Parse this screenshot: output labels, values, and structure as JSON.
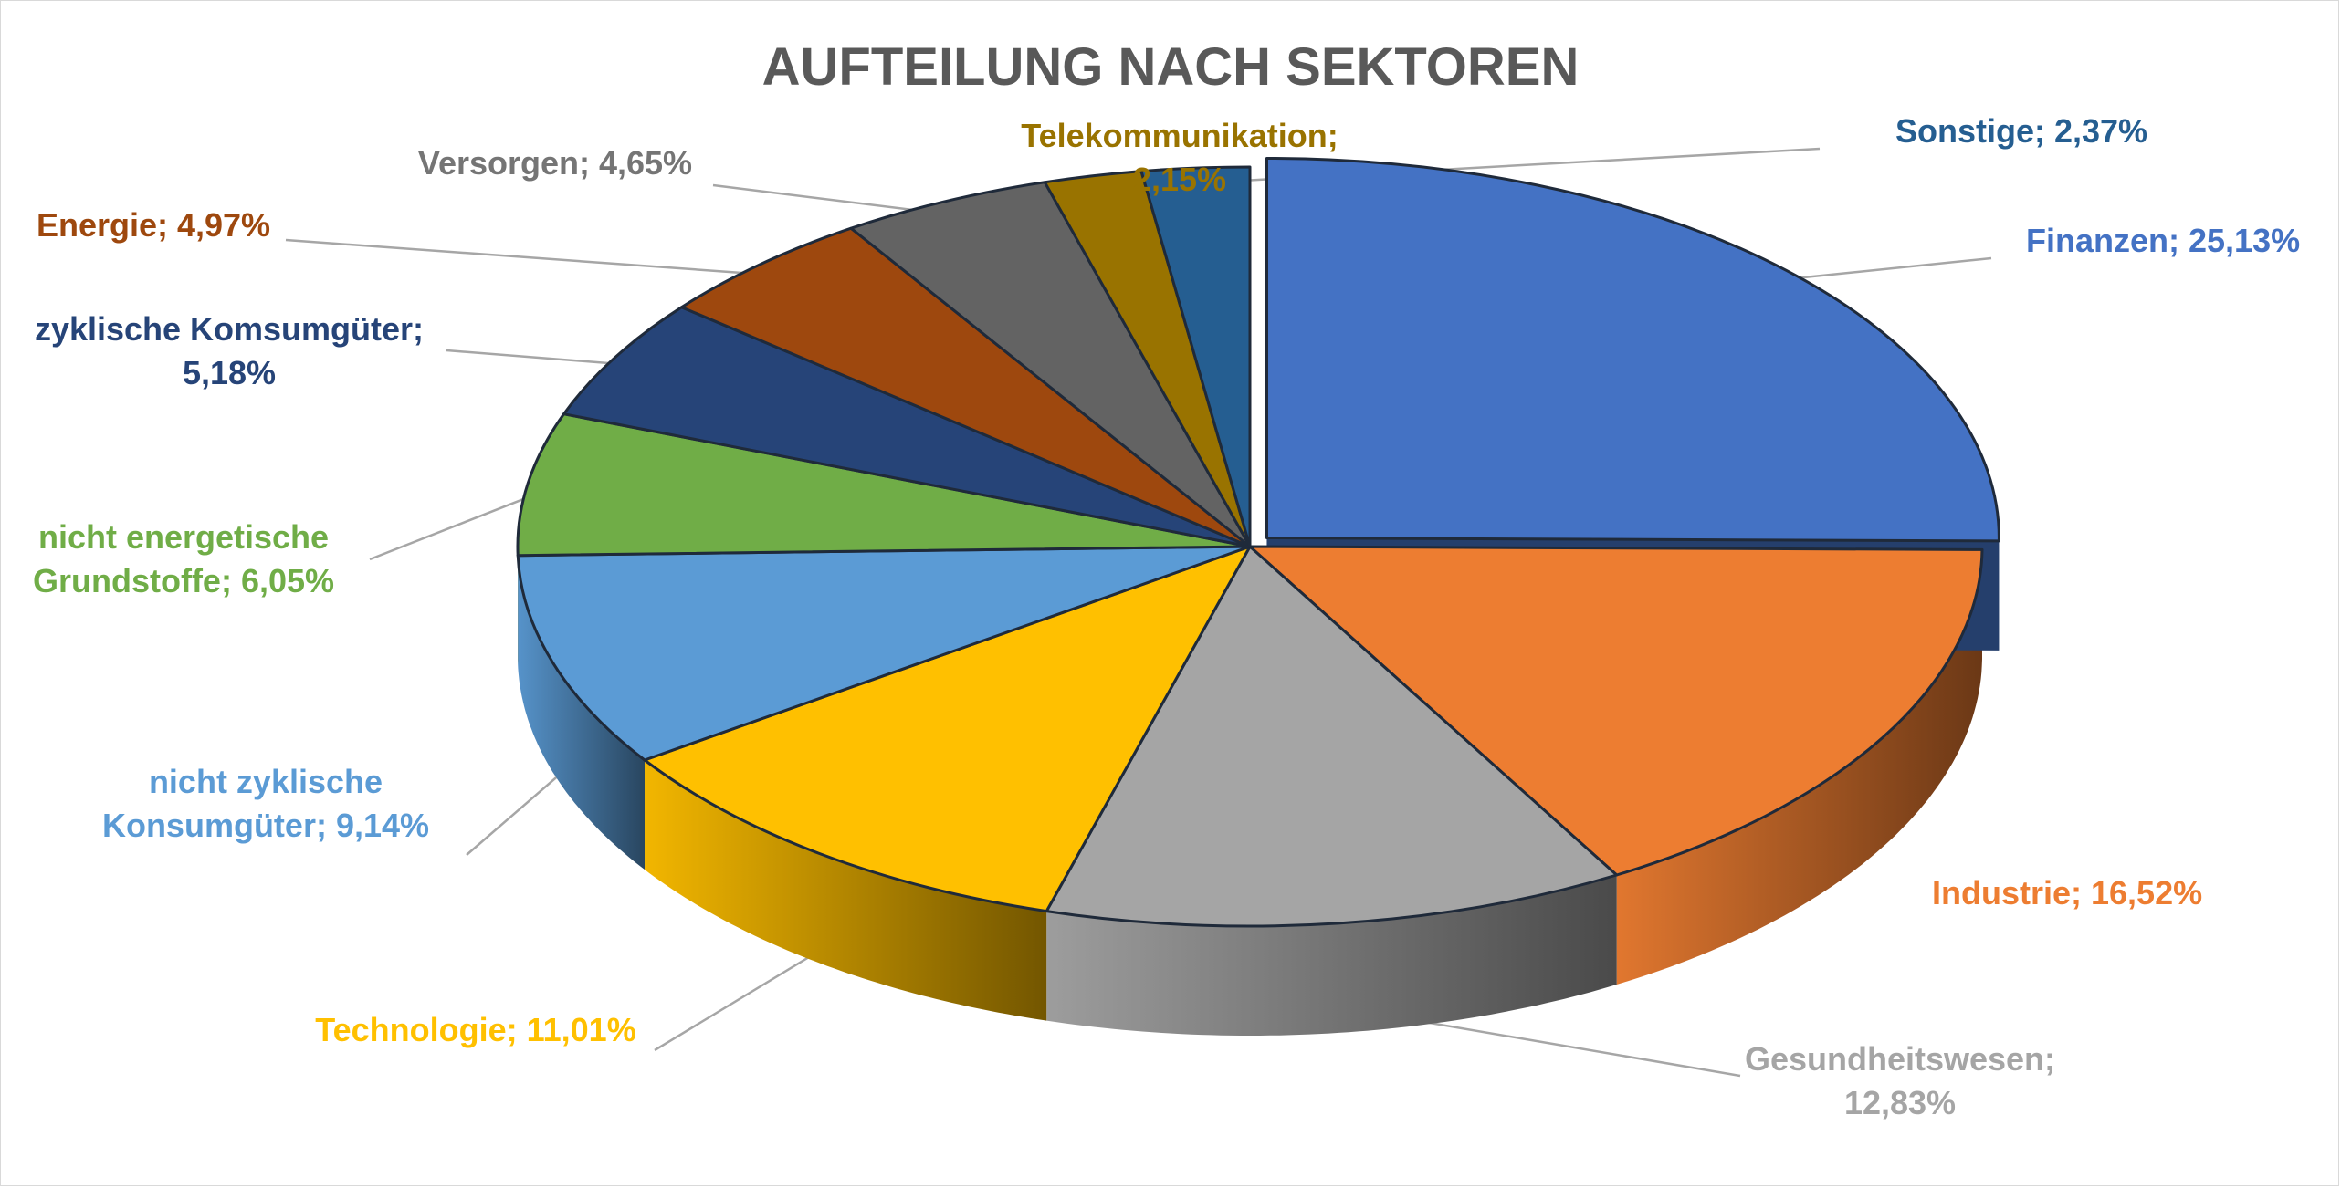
{
  "chart_data": {
    "type": "pie",
    "title": "AUFTEILUNG NACH SEKTOREN",
    "slices": [
      {
        "label_lines": [
          "Finanzen; 25,13%"
        ],
        "value": 25.13,
        "color": "#4472C4"
      },
      {
        "label_lines": [
          "Industrie; 16,52%"
        ],
        "value": 16.52,
        "color": "#ED7D31"
      },
      {
        "label_lines": [
          "Gesundheitswesen;",
          "12,83%"
        ],
        "value": 12.83,
        "color": "#A5A5A5"
      },
      {
        "label_lines": [
          "Technologie; 11,01%"
        ],
        "value": 11.01,
        "color": "#FFC000"
      },
      {
        "label_lines": [
          "nicht zyklische",
          "Konsumgüter; 9,14%"
        ],
        "value": 9.14,
        "color": "#5B9BD5"
      },
      {
        "label_lines": [
          "nicht energetische",
          "Grundstoffe; 6,05%"
        ],
        "value": 6.05,
        "color": "#70AD47"
      },
      {
        "label_lines": [
          "zyklische Komsumgüter;",
          "5,18%"
        ],
        "value": 5.18,
        "color": "#264478"
      },
      {
        "label_lines": [
          "Energie; 4,97%"
        ],
        "value": 4.97,
        "color": "#9E480E"
      },
      {
        "label_lines": [
          "Versorgen; 4,65%"
        ],
        "value": 4.65,
        "color": "#636363"
      },
      {
        "label_lines": [
          "Telekommunikation;",
          "2,15%"
        ],
        "value": 2.15,
        "color": "#997300"
      },
      {
        "label_lines": [
          "Sonstige; 2,37%"
        ],
        "value": 2.37,
        "color": "#255E91"
      }
    ],
    "start_angle_deg": 90,
    "direction": "clockwise",
    "exploded": "Finanzen",
    "view": "3d",
    "legend": "none",
    "labels": "outside-with-leader-lines"
  }
}
